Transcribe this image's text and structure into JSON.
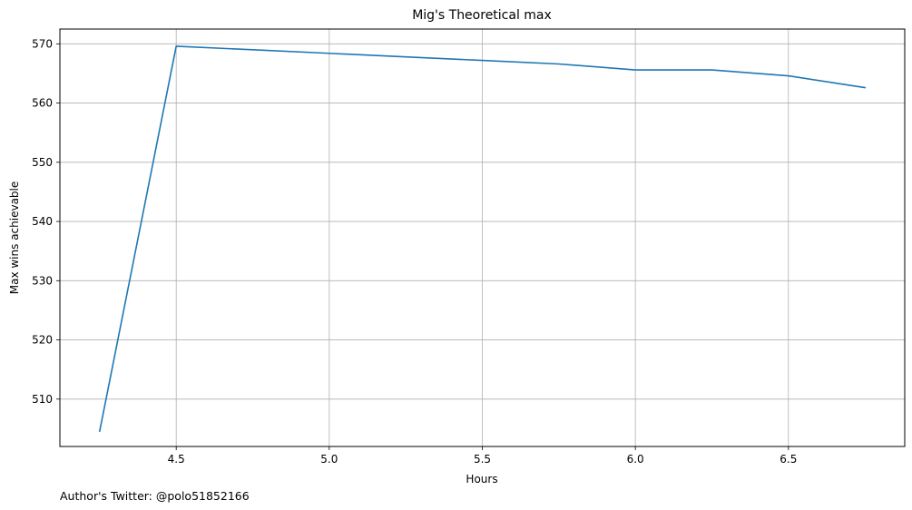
{
  "chart_data": {
    "type": "line",
    "title": "Mig's Theoretical max",
    "xlabel": "Hours",
    "ylabel": "Max wins achievable",
    "xlim": [
      4.12,
      6.88
    ],
    "ylim": [
      502,
      572.5
    ],
    "x_ticks": [
      4.5,
      5.0,
      5.5,
      6.0,
      6.5
    ],
    "x_tick_labels": [
      "4.5",
      "5.0",
      "5.5",
      "6.0",
      "6.5"
    ],
    "y_ticks": [
      510,
      520,
      530,
      540,
      550,
      560,
      570
    ],
    "y_tick_labels": [
      "510",
      "520",
      "530",
      "540",
      "550",
      "560",
      "570"
    ],
    "grid": true,
    "legend": "none",
    "series": [
      {
        "x": [
          4.25,
          4.5,
          4.75,
          5.0,
          5.25,
          5.5,
          5.75,
          6.0,
          6.25,
          6.5,
          6.75
        ],
        "values": [
          504.6,
          569.6,
          569.0,
          568.4,
          567.8,
          567.2,
          566.6,
          565.6,
          565.6,
          564.6,
          562.6
        ],
        "color": "#1f77b4"
      }
    ]
  },
  "footnote": "Author's Twitter: @polo51852166"
}
